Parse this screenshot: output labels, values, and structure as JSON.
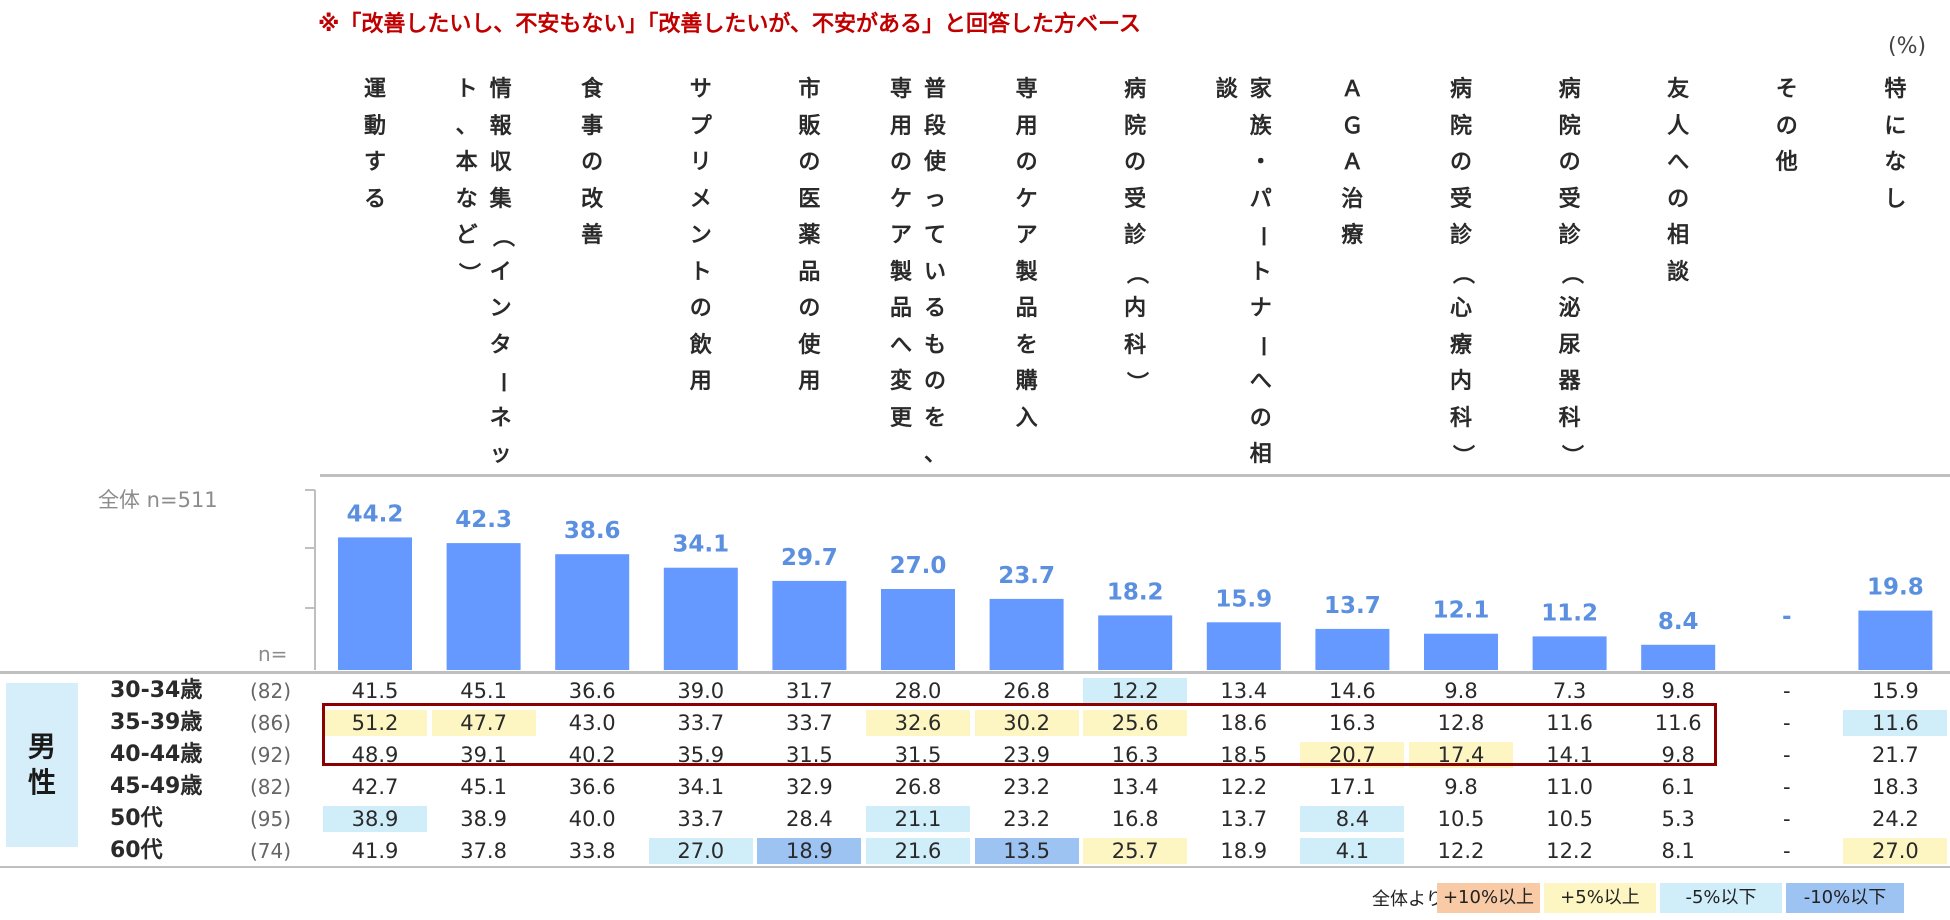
{
  "note": "※「改善したいし、不安もない」「改善したいが、不安がある」と回答した方ベース",
  "unit": "(%)",
  "total_label": "全体 n=511",
  "n_label": "n=",
  "gender_label": [
    "男",
    "性"
  ],
  "colors": {
    "bar": "#6699ff",
    "bar_value": "#5b8fe0",
    "plus10": "#f8cba6",
    "plus5": "#fdf6c3",
    "minus5": "#cfeefa",
    "minus10": "#9dc3f2",
    "highlight_border": "#8b0000"
  },
  "legend": {
    "prefix": "全体より",
    "items": [
      {
        "label": "+10%以上",
        "color": "plus10"
      },
      {
        "label": "+5%以上",
        "color": "plus5"
      },
      {
        "label": "-5%以下",
        "color": "minus5"
      },
      {
        "label": "-10%以下",
        "color": "minus10"
      }
    ]
  },
  "chart_data": {
    "type": "bar",
    "title": "",
    "categories": [
      [
        "運動する"
      ],
      [
        "情報収集（インターネッ",
        "ト、本など）"
      ],
      [
        "食事の改善"
      ],
      [
        "サプリメントの飲用"
      ],
      [
        "市販の医薬品の使用"
      ],
      [
        "普段使っているものを、",
        "専用のケア製品へ変更"
      ],
      [
        "専用のケア製品を購入"
      ],
      [
        "病院の受診（内科）"
      ],
      [
        "家族・パートナーへの相",
        "談"
      ],
      [
        "ＡＧＡ治療"
      ],
      [
        "病院の受診（心療内科）"
      ],
      [
        "病院の受診（泌尿器科）"
      ],
      [
        "友人への相談"
      ],
      [
        "その他"
      ],
      [
        "特になし"
      ]
    ],
    "values": [
      "44.2",
      "42.3",
      "38.6",
      "34.1",
      "29.7",
      "27.0",
      "23.7",
      "18.2",
      "15.9",
      "13.7",
      "12.1",
      "11.2",
      "8.4",
      "-",
      "19.8"
    ],
    "ylim": [
      0,
      60
    ],
    "rows": [
      {
        "age": "30-34歳",
        "n": "(82)",
        "values": [
          "41.5",
          "45.1",
          "36.6",
          "39.0",
          "31.7",
          "28.0",
          "26.8",
          "12.2",
          "13.4",
          "14.6",
          "9.8",
          "7.3",
          "9.8",
          "-",
          "15.9"
        ],
        "shade": [
          "",
          "",
          "",
          "",
          "",
          "",
          "",
          "minus5",
          "",
          "",
          "",
          "",
          "",
          "",
          ""
        ]
      },
      {
        "age": "35-39歳",
        "n": "(86)",
        "values": [
          "51.2",
          "47.7",
          "43.0",
          "33.7",
          "33.7",
          "32.6",
          "30.2",
          "25.6",
          "18.6",
          "16.3",
          "12.8",
          "11.6",
          "11.6",
          "-",
          "11.6"
        ],
        "shade": [
          "plus5",
          "plus5",
          "",
          "",
          "",
          "plus5",
          "plus5",
          "plus5",
          "",
          "",
          "",
          "",
          "",
          "",
          "minus5"
        ]
      },
      {
        "age": "40-44歳",
        "n": "(92)",
        "values": [
          "48.9",
          "39.1",
          "40.2",
          "35.9",
          "31.5",
          "31.5",
          "23.9",
          "16.3",
          "18.5",
          "20.7",
          "17.4",
          "14.1",
          "9.8",
          "-",
          "21.7"
        ],
        "shade": [
          "",
          "",
          "",
          "",
          "",
          "",
          "",
          "",
          "",
          "plus5",
          "plus5",
          "",
          "",
          "",
          ""
        ]
      },
      {
        "age": "45-49歳",
        "n": "(82)",
        "values": [
          "42.7",
          "45.1",
          "36.6",
          "34.1",
          "32.9",
          "26.8",
          "23.2",
          "13.4",
          "12.2",
          "17.1",
          "9.8",
          "11.0",
          "6.1",
          "-",
          "18.3"
        ],
        "shade": [
          "",
          "",
          "",
          "",
          "",
          "",
          "",
          "",
          "",
          "",
          "",
          "",
          "",
          "",
          ""
        ]
      },
      {
        "age": "50代",
        "n": "(95)",
        "values": [
          "38.9",
          "38.9",
          "40.0",
          "33.7",
          "28.4",
          "21.1",
          "23.2",
          "16.8",
          "13.7",
          "8.4",
          "10.5",
          "10.5",
          "5.3",
          "-",
          "24.2"
        ],
        "shade": [
          "minus5",
          "",
          "",
          "",
          "",
          "minus5",
          "",
          "",
          "",
          "minus5",
          "",
          "",
          "",
          "",
          ""
        ]
      },
      {
        "age": "60代",
        "n": "(74)",
        "values": [
          "41.9",
          "37.8",
          "33.8",
          "27.0",
          "18.9",
          "21.6",
          "13.5",
          "25.7",
          "18.9",
          "4.1",
          "12.2",
          "12.2",
          "8.1",
          "-",
          "27.0"
        ],
        "shade": [
          "",
          "",
          "",
          "minus5",
          "minus10",
          "minus5",
          "minus10",
          "plus5",
          "",
          "minus5",
          "",
          "",
          "",
          "",
          "plus5"
        ]
      }
    ]
  }
}
